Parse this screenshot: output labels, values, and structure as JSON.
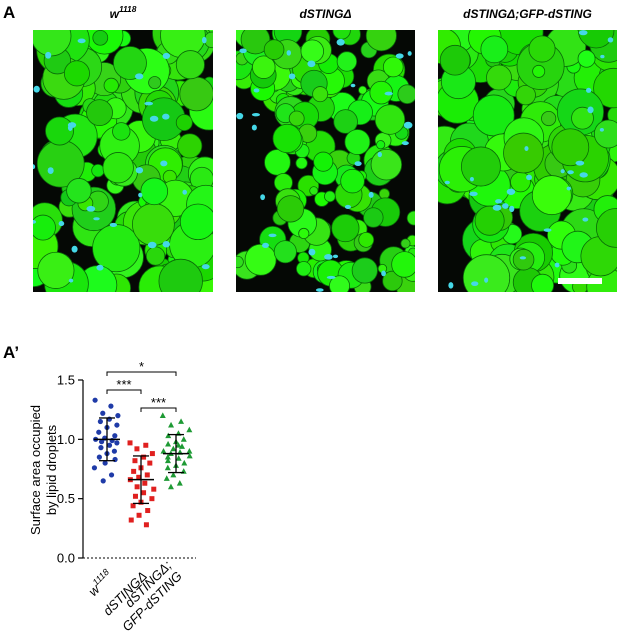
{
  "panel_labels": [
    "A",
    "A’"
  ],
  "images": [
    {
      "title": {
        "base": "w",
        "sup": "1118"
      }
    },
    {
      "title": "dSTINGΔ"
    },
    {
      "title": "dSTINGΔ;GFP-dSTING"
    }
  ],
  "chart_data": {
    "type": "scatter",
    "ylabel": [
      "Surface area occupied",
      "by lipid droplets"
    ],
    "categories": [
      {
        "base": "w",
        "sup": "1118"
      },
      [
        "dSTINGΔ"
      ],
      [
        "dSTINGΔ;",
        "GFP-dSTING"
      ]
    ],
    "ylim": [
      0,
      1.5
    ],
    "yticks": [
      {
        "value": 0,
        "label": "0.0"
      },
      0.5,
      {
        "value": 1,
        "label": "1.0"
      },
      1.5
    ],
    "significance": [
      "***",
      "*",
      "***"
    ],
    "series": [
      {
        "color": "#1f3ba8",
        "marker": "circle",
        "mean": 1.0,
        "sd": 0.18,
        "values": [
          1.33,
          1.28,
          1.22,
          1.2,
          1.17,
          1.15,
          1.12,
          1.1,
          1.06,
          1.03,
          1.01,
          1.0,
          0.99,
          0.98,
          0.97,
          0.95,
          0.93,
          0.9,
          0.88,
          0.85,
          0.83,
          0.8,
          0.76,
          0.7,
          0.65
        ]
      },
      {
        "color": "#e0201f",
        "marker": "square",
        "mean": 0.66,
        "sd": 0.2,
        "values": [
          0.97,
          0.95,
          0.92,
          0.88,
          0.85,
          0.82,
          0.8,
          0.76,
          0.73,
          0.7,
          0.68,
          0.66,
          0.63,
          0.6,
          0.58,
          0.55,
          0.52,
          0.5,
          0.47,
          0.44,
          0.4,
          0.36,
          0.32,
          0.28
        ]
      },
      {
        "color": "#1e9a34",
        "marker": "triangle",
        "mean": 0.88,
        "sd": 0.16,
        "values": [
          1.2,
          1.15,
          1.12,
          1.08,
          1.05,
          1.03,
          1.0,
          0.98,
          0.96,
          0.94,
          0.92,
          0.9,
          0.89,
          0.88,
          0.86,
          0.84,
          0.82,
          0.8,
          0.78,
          0.76,
          0.73,
          0.7,
          0.67,
          0.63,
          0.6,
          0.9,
          0.95,
          0.85
        ]
      }
    ]
  }
}
